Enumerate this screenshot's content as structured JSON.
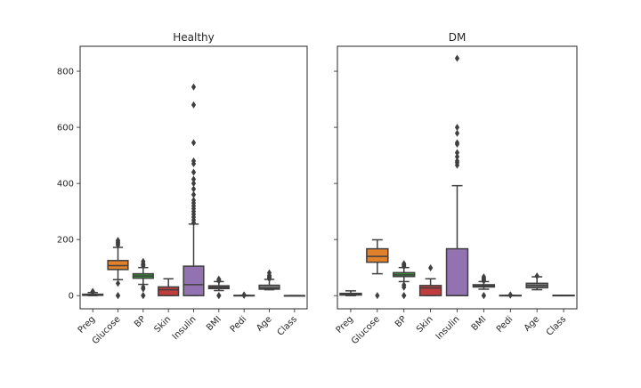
{
  "chart_data": [
    {
      "type": "box",
      "title": "Healthy",
      "xlabel": "",
      "ylabel": "",
      "ylim": [
        -47,
        889
      ],
      "yticks": [
        0,
        200,
        400,
        600,
        800
      ],
      "ytick_labels": [
        "0",
        "200",
        "400",
        "600",
        "800"
      ],
      "show_ytick_labels": true,
      "grid": false,
      "categories": [
        "Preg",
        "Glucose",
        "BP",
        "Skin",
        "Insulin",
        "BMI",
        "Pedi",
        "Age",
        "Class"
      ],
      "boxes": [
        {
          "name": "Preg",
          "color": "#3274a1",
          "q1": 1,
          "median": 2,
          "q3": 5,
          "whislo": 0,
          "whishi": 11,
          "fliers": [
            13,
            14,
            15
          ]
        },
        {
          "name": "Glucose",
          "color": "#e1812c",
          "q1": 93,
          "median": 107,
          "q3": 125,
          "whislo": 57,
          "whishi": 172,
          "fliers": [
            0,
            0,
            44,
            180,
            185,
            189,
            194,
            197
          ]
        },
        {
          "name": "BP",
          "color": "#3a923a",
          "q1": 62,
          "median": 70,
          "q3": 78,
          "whislo": 40,
          "whishi": 100,
          "fliers": [
            0,
            0,
            24,
            30,
            106,
            110,
            114,
            122
          ]
        },
        {
          "name": "Skin",
          "color": "#c03d3e",
          "q1": 0,
          "median": 21,
          "q3": 31,
          "whislo": 0,
          "whishi": 60,
          "fliers": []
        },
        {
          "name": "Insulin",
          "color": "#9372b2",
          "q1": 0,
          "median": 39,
          "q3": 105,
          "whislo": 0,
          "whishi": 255,
          "fliers": [
            260,
            270,
            280,
            290,
            300,
            310,
            320,
            330,
            340,
            360,
            380,
            400,
            415,
            440,
            470,
            480,
            545,
            680,
            744
          ]
        },
        {
          "name": "BMI",
          "color": "#845b53",
          "q1": 25,
          "median": 30,
          "q3": 35,
          "whislo": 18,
          "whishi": 50,
          "fliers": [
            0,
            0,
            53,
            57,
            59
          ]
        },
        {
          "name": "Pedi",
          "color": "#d684bd",
          "q1": 0.2,
          "median": 0.4,
          "q3": 0.6,
          "whislo": 0.08,
          "whishi": 1.2,
          "fliers": [
            1.3,
            1.5,
            2.0,
            2.3
          ]
        },
        {
          "name": "Age",
          "color": "#7f7f7f",
          "q1": 23,
          "median": 27,
          "q3": 37,
          "whislo": 21,
          "whishi": 58,
          "fliers": [
            60,
            63,
            66,
            69,
            72,
            81
          ]
        },
        {
          "name": "Class",
          "color": "#a9aa35",
          "q1": 0,
          "median": 0,
          "q3": 0,
          "whislo": 0,
          "whishi": 0,
          "fliers": []
        }
      ]
    },
    {
      "type": "box",
      "title": "DM",
      "xlabel": "",
      "ylabel": "",
      "ylim": [
        -47,
        889
      ],
      "yticks": [
        0,
        200,
        400,
        600,
        800
      ],
      "ytick_labels": [
        "0",
        "200",
        "400",
        "600",
        "800"
      ],
      "show_ytick_labels": false,
      "grid": false,
      "categories": [
        "Preg",
        "Glucose",
        "BP",
        "Skin",
        "Insulin",
        "BMI",
        "Pedi",
        "Age",
        "Class"
      ],
      "boxes": [
        {
          "name": "Preg",
          "color": "#3274a1",
          "q1": 2,
          "median": 4,
          "q3": 8,
          "whislo": 0,
          "whishi": 17,
          "fliers": []
        },
        {
          "name": "Glucose",
          "color": "#e1812c",
          "q1": 119,
          "median": 140,
          "q3": 167,
          "whislo": 78,
          "whishi": 199,
          "fliers": [
            0
          ]
        },
        {
          "name": "BP",
          "color": "#3a923a",
          "q1": 68,
          "median": 74,
          "q3": 82,
          "whislo": 50,
          "whishi": 100,
          "fliers": [
            0,
            0,
            30,
            38,
            104,
            108,
            110,
            114
          ]
        },
        {
          "name": "Skin",
          "color": "#c03d3e",
          "q1": 0,
          "median": 27,
          "q3": 36,
          "whislo": 0,
          "whishi": 60,
          "fliers": [
            99
          ]
        },
        {
          "name": "Insulin",
          "color": "#9372b2",
          "q1": 0,
          "median": 0,
          "q3": 167,
          "whislo": 0,
          "whishi": 392,
          "fliers": [
            465,
            474,
            480,
            495,
            510,
            540,
            545,
            579,
            600,
            846
          ]
        },
        {
          "name": "BMI",
          "color": "#845b53",
          "q1": 30.8,
          "median": 34.3,
          "q3": 38.8,
          "whislo": 22.9,
          "whishi": 50,
          "fliers": [
            0,
            0,
            52,
            55,
            59,
            62,
            67
          ]
        },
        {
          "name": "Pedi",
          "color": "#d684bd",
          "q1": 0.26,
          "median": 0.45,
          "q3": 0.73,
          "whislo": 0.09,
          "whishi": 1.4,
          "fliers": [
            1.6,
            2.1,
            2.4
          ]
        },
        {
          "name": "Age",
          "color": "#7f7f7f",
          "q1": 28,
          "median": 36,
          "q3": 44,
          "whislo": 21,
          "whishi": 67,
          "fliers": [
            70
          ]
        },
        {
          "name": "Class",
          "color": "#a9aa35",
          "q1": 1,
          "median": 1,
          "q3": 1,
          "whislo": 1,
          "whishi": 1,
          "fliers": []
        }
      ]
    }
  ]
}
